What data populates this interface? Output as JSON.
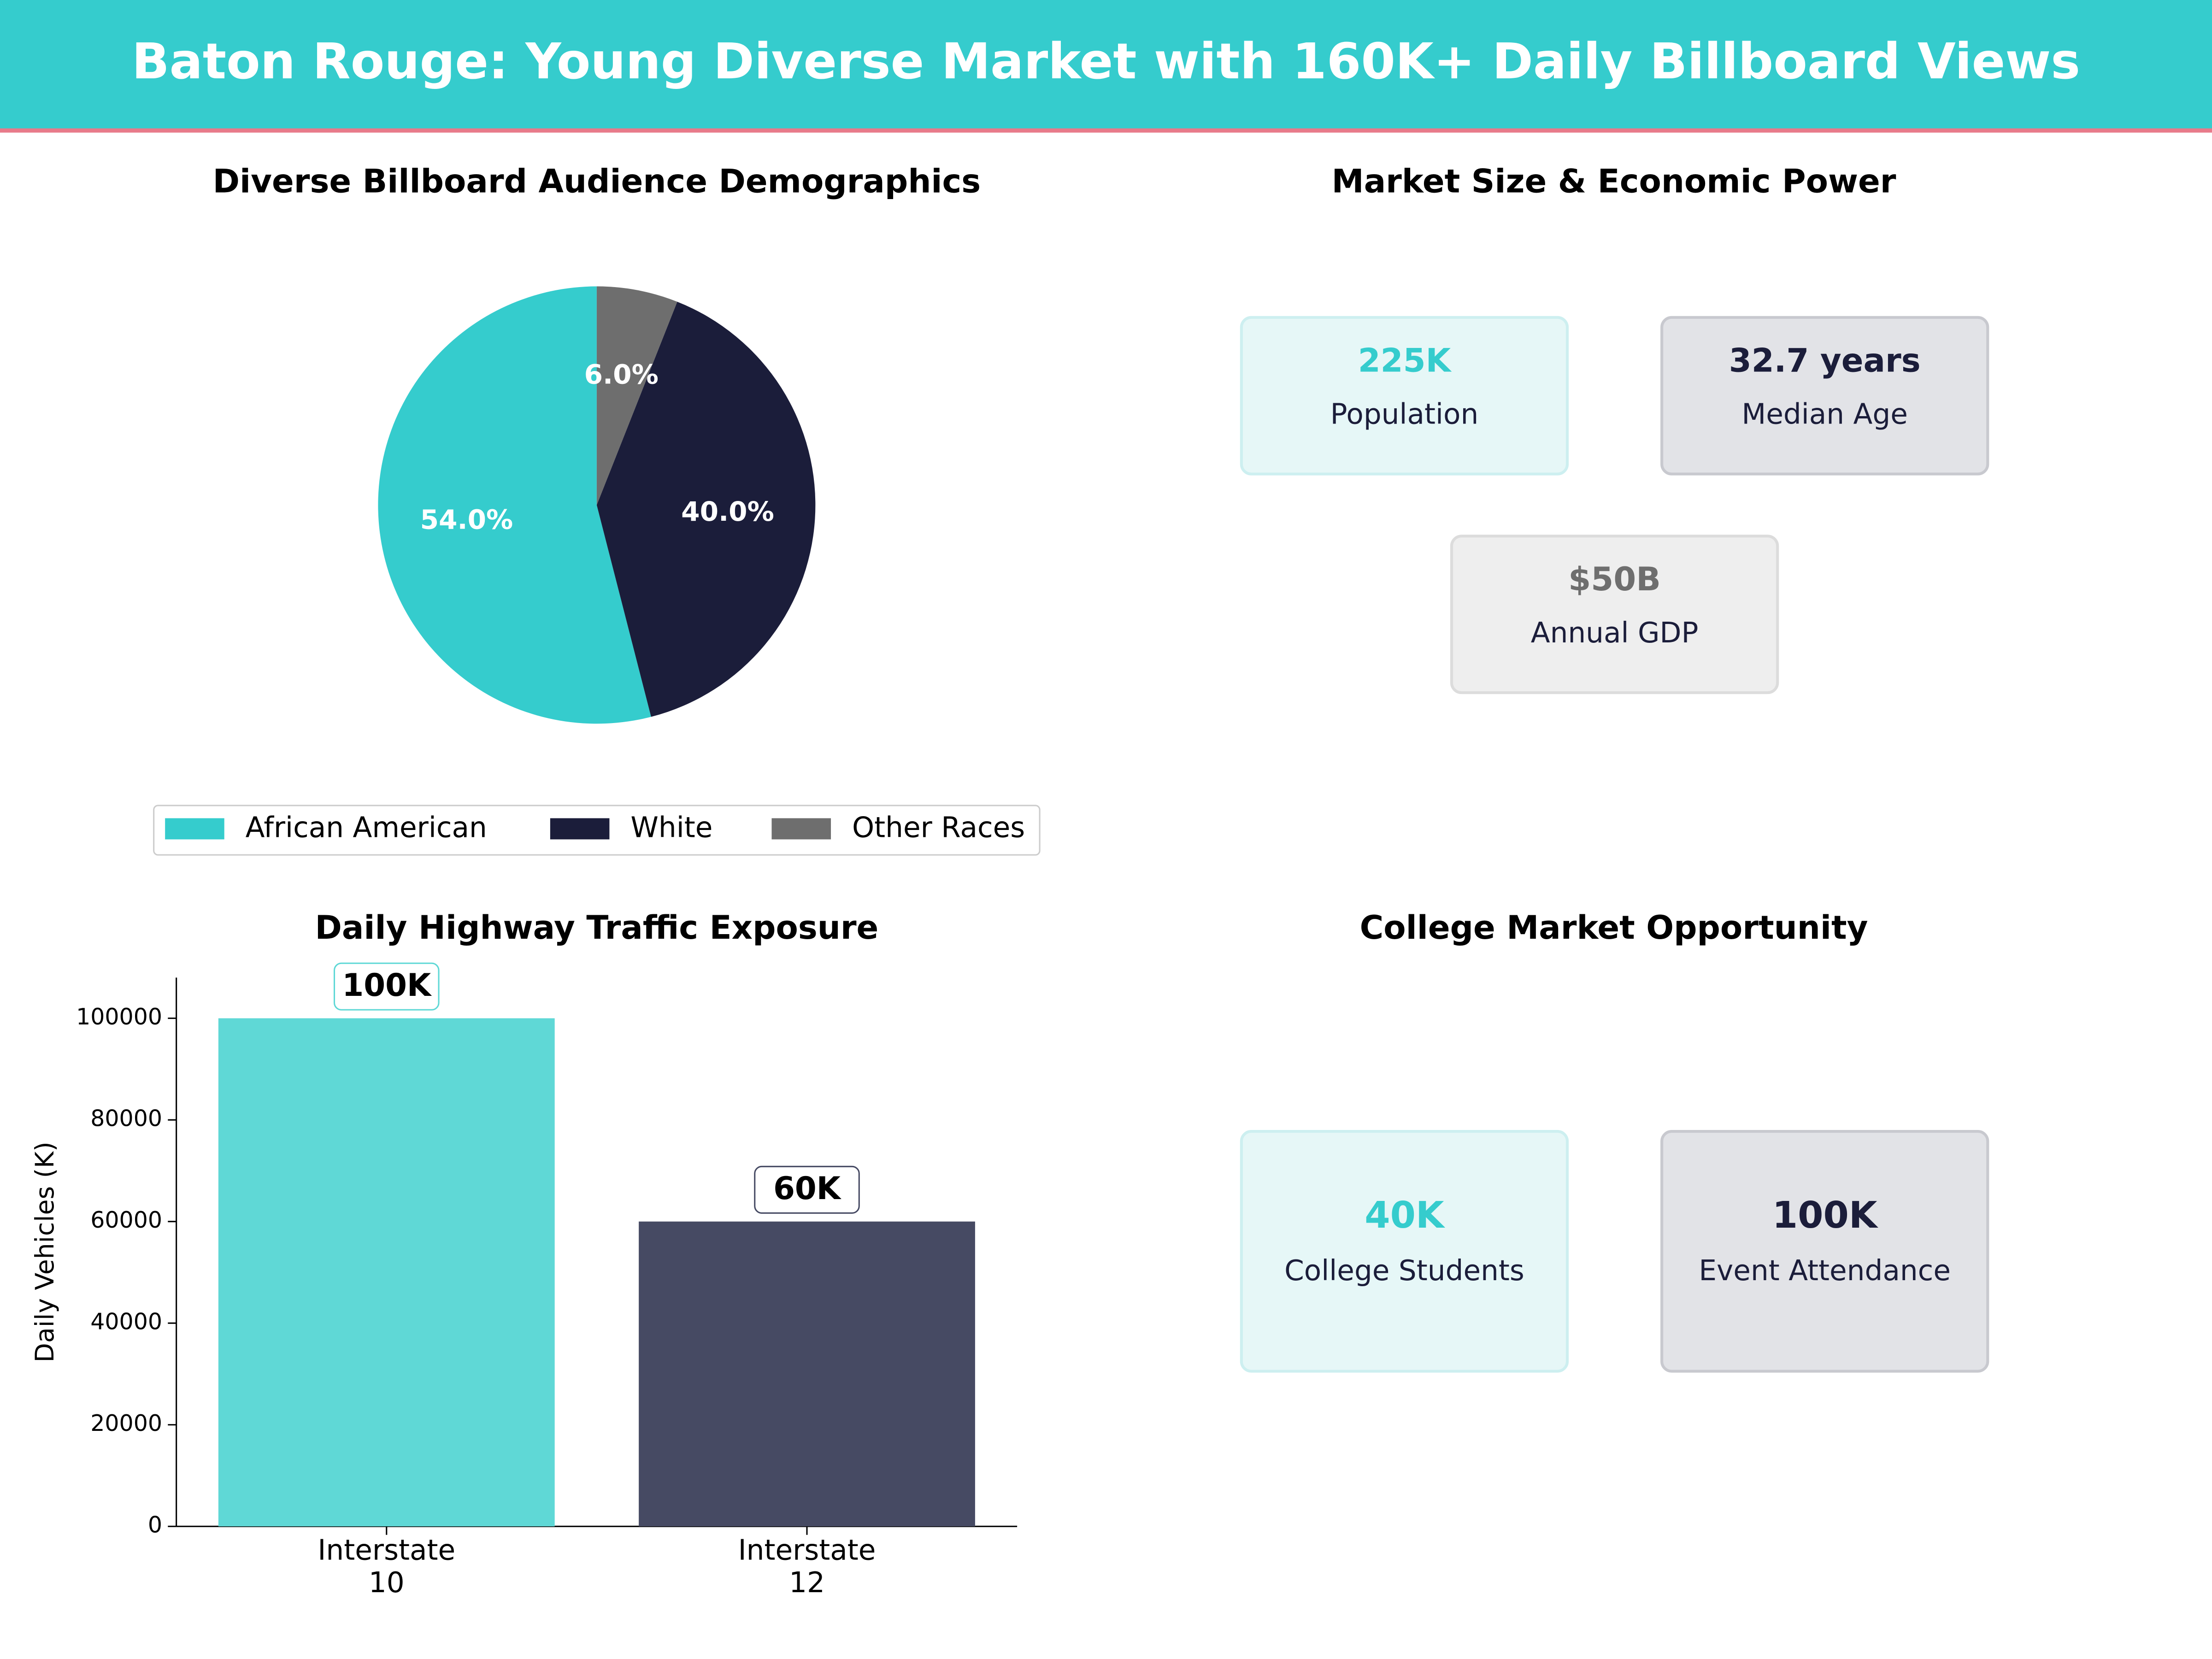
{
  "header": {
    "title": "Baton Rouge: Young Diverse Market with 160K+ Daily Billboard Views"
  },
  "chart_data": [
    {
      "type": "pie",
      "title": "Diverse Billboard Audience Demographics",
      "categories": [
        "African American",
        "White",
        "Other Races"
      ],
      "values": [
        54,
        40,
        6
      ],
      "value_labels": [
        "54.0%",
        "40.0%",
        "6.0%"
      ],
      "colors": [
        "#35cccd",
        "#1b1d3a",
        "#6e6e6e"
      ],
      "legend": "lower center"
    },
    {
      "type": "bar",
      "title": "Daily Highway Traffic Exposure",
      "categories": [
        "Interstate 10",
        "Interstate 12"
      ],
      "values": [
        100000,
        60000
      ],
      "value_labels": [
        "100K",
        "60K"
      ],
      "colors": [
        "#5fd8d6",
        "#464a63"
      ],
      "ylabel": "Daily Vehicles (K)",
      "ylim": [
        0,
        108000
      ],
      "yticks": [
        0,
        20000,
        40000,
        60000,
        80000,
        100000
      ]
    }
  ],
  "market": {
    "title": "Market Size & Economic Power",
    "cards": [
      {
        "value": "225K",
        "label": "Population",
        "color": "#35cccd",
        "background": "#e6f7f7",
        "border": "#cdeff0"
      },
      {
        "value": "32.7 years",
        "label": "Median Age",
        "color": "#1b1d3a",
        "background": "#e2e3e7",
        "border": "#c8c9cf"
      },
      {
        "value": "$50B",
        "label": "Annual GDP",
        "color": "#6e6e6e",
        "background": "#eeeeee",
        "border": "#dcdcdc"
      }
    ]
  },
  "college": {
    "title": "College Market Opportunity",
    "cards": [
      {
        "value": "40K",
        "label": "College Students",
        "color": "#35cccd",
        "background": "#e6f7f7",
        "border": "#cdeff0"
      },
      {
        "value": "100K",
        "label": "Event Attendance",
        "color": "#1b1d3a",
        "background": "#e2e3e7",
        "border": "#c8c9cf"
      }
    ]
  }
}
